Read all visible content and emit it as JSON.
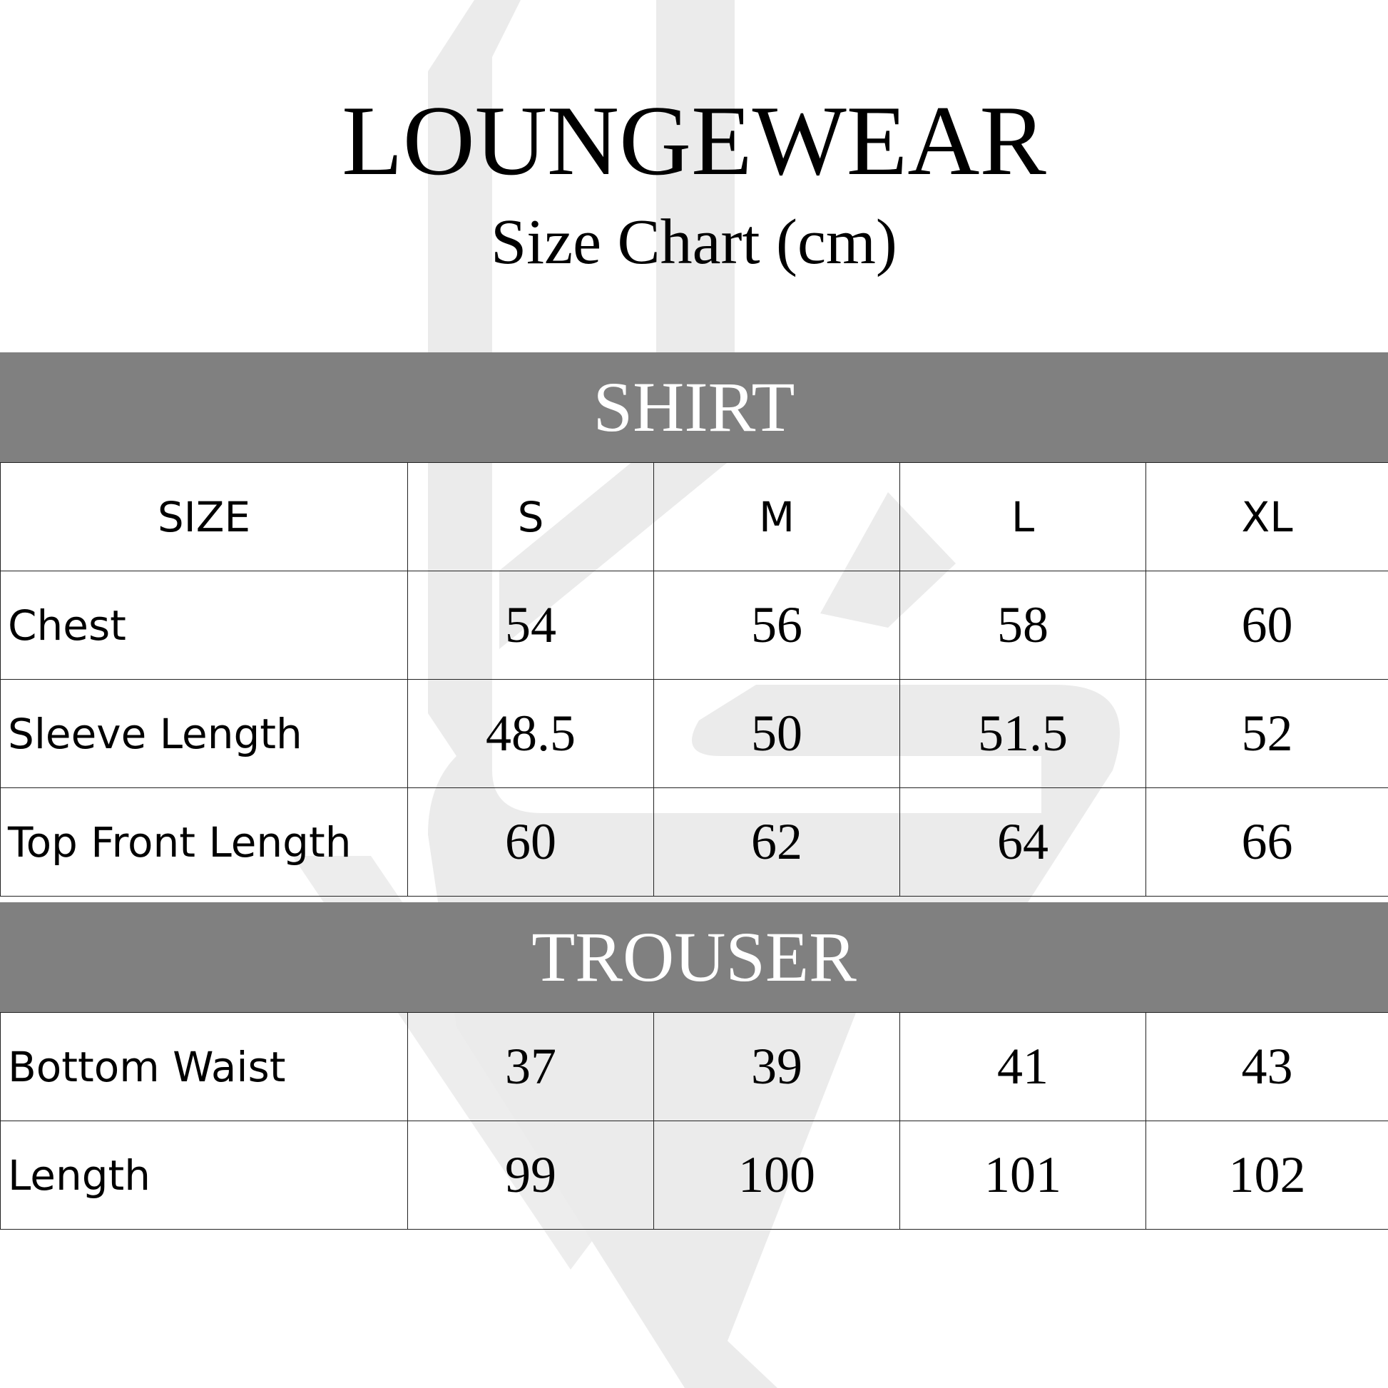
{
  "title": "LOUNGEWEAR",
  "subtitle": "Size Chart (cm)",
  "watermark_color": "#e8e8e8",
  "band_color": "#808080",
  "shirt": {
    "label": "SHIRT",
    "header": [
      "SIZE",
      "S",
      "M",
      "L",
      "XL"
    ],
    "rows": [
      {
        "label": "Chest",
        "values": [
          "54",
          "56",
          "58",
          "60"
        ]
      },
      {
        "label": "Sleeve Length",
        "values": [
          "48.5",
          "50",
          "51.5",
          "52"
        ]
      },
      {
        "label": "Top Front Length",
        "values": [
          "60",
          "62",
          "64",
          "66"
        ]
      }
    ]
  },
  "trouser": {
    "label": "TROUSER",
    "rows": [
      {
        "label": "Bottom Waist",
        "values": [
          "37",
          "39",
          "41",
          "43"
        ]
      },
      {
        "label": "Length",
        "values": [
          "99",
          "100",
          "101",
          "102"
        ]
      }
    ]
  }
}
